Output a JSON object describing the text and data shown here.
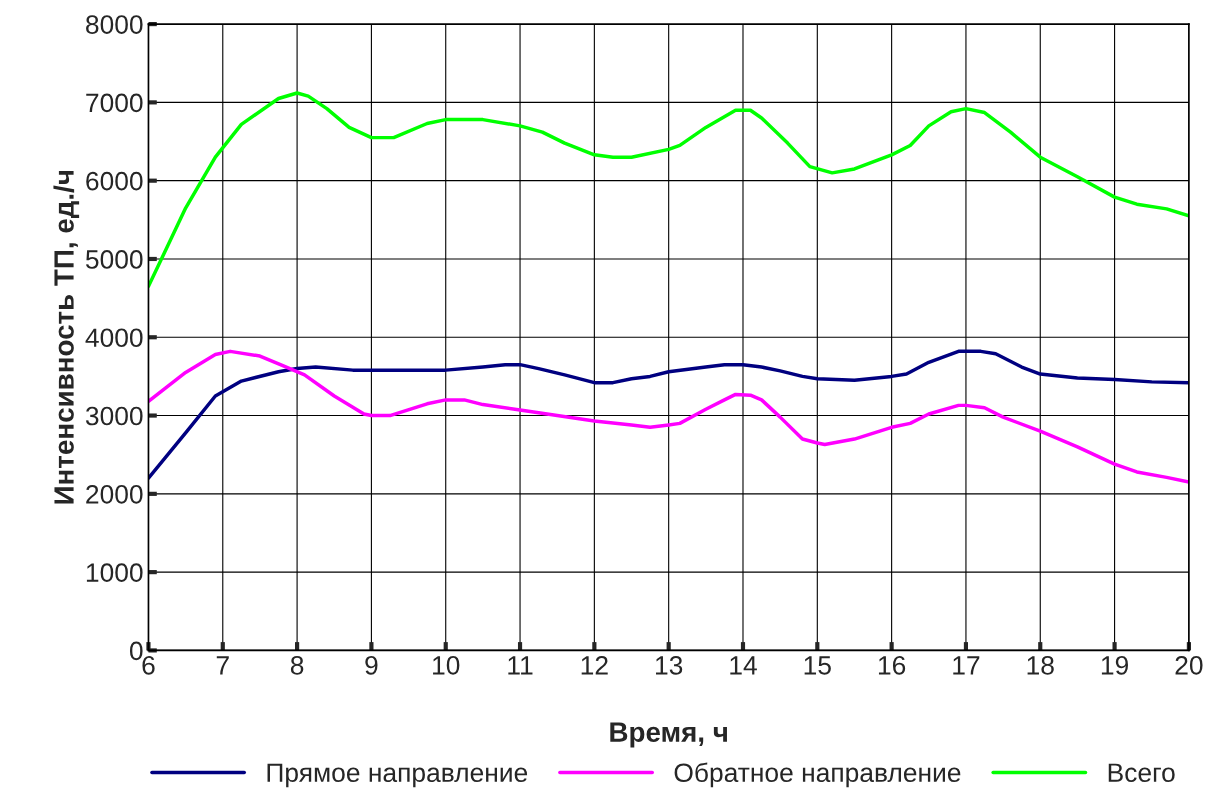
{
  "chart_data": {
    "type": "line",
    "xlabel": "Время, ч",
    "ylabel": "Интенсивность ТП, ед./ч",
    "xlim": [
      6,
      20
    ],
    "xticks": [
      6,
      7,
      8,
      9,
      10,
      11,
      12,
      13,
      14,
      15,
      16,
      17,
      18,
      19,
      20
    ],
    "ylim": [
      0,
      8000
    ],
    "yticks": [
      0,
      1000,
      2000,
      3000,
      4000,
      5000,
      6000,
      7000,
      8000
    ],
    "grid": true,
    "legend": "bottom",
    "marker": "none",
    "line_style": "solid",
    "series": [
      {
        "name": "Прямое направление",
        "color": "#000080",
        "x": [
          6,
          6.5,
          6.9,
          7.25,
          7.75,
          8.0,
          8.25,
          8.75,
          9.0,
          10.0,
          10.5,
          10.8,
          11.0,
          11.25,
          11.6,
          12.0,
          12.25,
          12.5,
          12.75,
          13.0,
          13.5,
          13.75,
          14.0,
          14.25,
          14.5,
          14.8,
          15.0,
          15.5,
          16.0,
          16.2,
          16.5,
          16.9,
          17.2,
          17.4,
          17.75,
          18.0,
          18.5,
          19.0,
          19.5,
          20
        ],
        "values": [
          2200,
          2780,
          3250,
          3440,
          3560,
          3600,
          3620,
          3580,
          3580,
          3580,
          3620,
          3650,
          3650,
          3600,
          3520,
          3420,
          3420,
          3470,
          3500,
          3560,
          3620,
          3650,
          3650,
          3620,
          3570,
          3500,
          3470,
          3450,
          3500,
          3530,
          3680,
          3820,
          3820,
          3790,
          3620,
          3530,
          3480,
          3460,
          3430,
          3420
        ]
      },
      {
        "name": "Обратное направление",
        "color": "#ff00ff",
        "x": [
          6,
          6.5,
          6.9,
          7.1,
          7.5,
          7.8,
          8.1,
          8.5,
          8.9,
          9.0,
          9.25,
          9.75,
          10.0,
          10.25,
          10.5,
          11.0,
          11.5,
          12.0,
          12.5,
          12.75,
          13.0,
          13.15,
          13.5,
          13.75,
          13.9,
          14.1,
          14.25,
          14.5,
          14.8,
          15.0,
          15.1,
          15.5,
          16.0,
          16.25,
          16.5,
          16.9,
          17.0,
          17.25,
          17.5,
          18.0,
          18.5,
          19.0,
          19.3,
          19.7,
          20
        ],
        "values": [
          3180,
          3550,
          3780,
          3820,
          3760,
          3640,
          3520,
          3250,
          3020,
          3000,
          3000,
          3150,
          3200,
          3200,
          3140,
          3070,
          3000,
          2930,
          2880,
          2850,
          2880,
          2900,
          3080,
          3200,
          3270,
          3260,
          3200,
          2980,
          2700,
          2650,
          2630,
          2700,
          2850,
          2900,
          3020,
          3130,
          3130,
          3100,
          2980,
          2800,
          2600,
          2380,
          2280,
          2210,
          2150
        ]
      },
      {
        "name": "Всего",
        "color": "#00ff00",
        "x": [
          6,
          6.5,
          6.9,
          7.25,
          7.75,
          8.0,
          8.15,
          8.4,
          8.7,
          9.0,
          9.3,
          9.75,
          10.0,
          10.5,
          11.0,
          11.3,
          11.6,
          12.0,
          12.25,
          12.5,
          13.0,
          13.15,
          13.5,
          13.9,
          14.1,
          14.25,
          14.6,
          14.9,
          15.2,
          15.5,
          16.0,
          16.25,
          16.5,
          16.8,
          17.0,
          17.25,
          17.6,
          18.0,
          18.5,
          19.0,
          19.3,
          19.7,
          20
        ],
        "values": [
          4650,
          5650,
          6300,
          6720,
          7050,
          7120,
          7080,
          6920,
          6680,
          6550,
          6550,
          6730,
          6780,
          6780,
          6700,
          6620,
          6480,
          6330,
          6300,
          6300,
          6400,
          6450,
          6680,
          6900,
          6900,
          6800,
          6480,
          6180,
          6100,
          6150,
          6330,
          6450,
          6700,
          6880,
          6920,
          6870,
          6620,
          6300,
          6050,
          5790,
          5700,
          5640,
          5550
        ]
      }
    ]
  }
}
